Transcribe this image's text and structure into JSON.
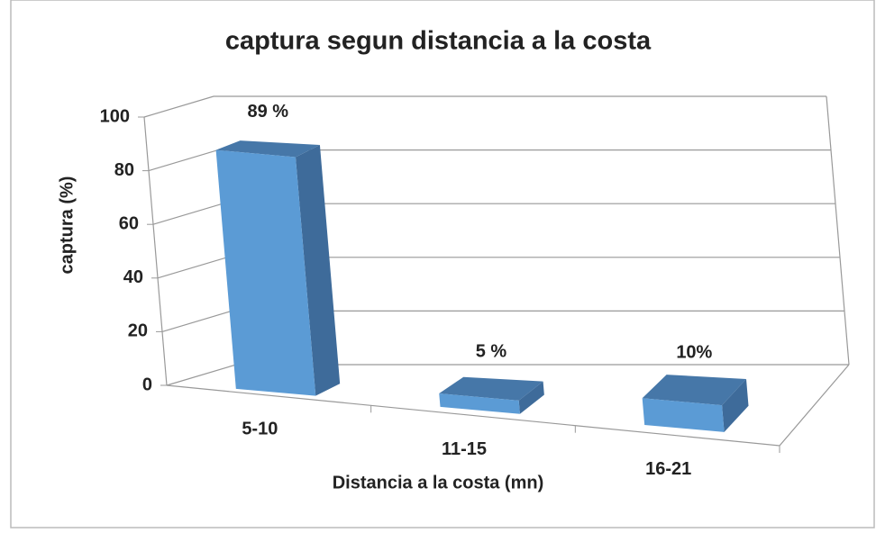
{
  "chart_data": {
    "type": "bar3d",
    "title": "captura segun distancia a la costa",
    "x_label": "Distancia a la costa (mn)",
    "y_label": "captura (%)",
    "categories": [
      "5-10",
      "11-15",
      "16-21"
    ],
    "values": [
      89,
      5,
      10
    ],
    "value_labels": [
      "89 %",
      "5 %",
      "10%"
    ],
    "color": "#5b9bd5",
    "ylim": [
      0,
      100
    ],
    "yticks": [
      0,
      20,
      40,
      60,
      80,
      100
    ],
    "grid": true
  }
}
